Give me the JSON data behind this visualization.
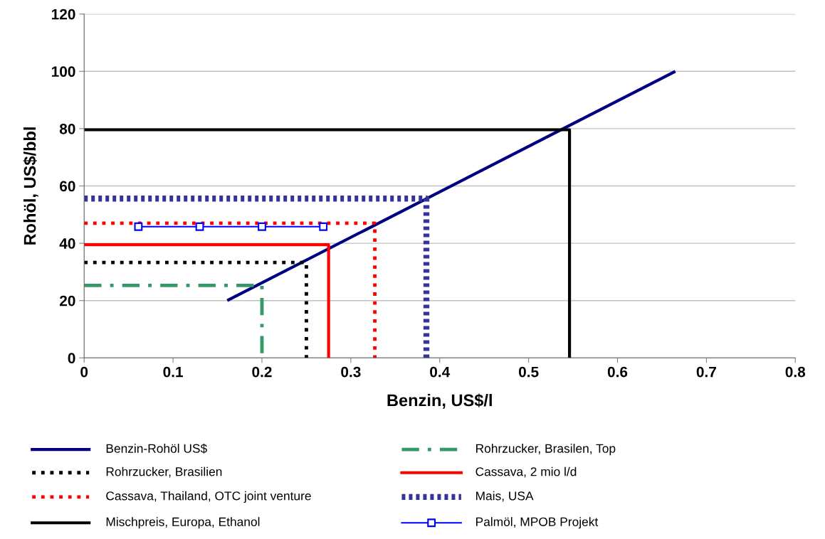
{
  "chart_data": {
    "type": "line",
    "xlabel": "Benzin, US$/l",
    "ylabel": "Rohöl, US$/bbl",
    "xlim": [
      0,
      0.8
    ],
    "xticks": [
      {
        "value": 0,
        "label": "0"
      },
      0.1,
      0.2,
      0.3,
      0.4,
      0.5,
      0.6,
      0.7,
      0.8
    ],
    "ylim": [
      0,
      120
    ],
    "yticks": [
      0,
      20,
      40,
      60,
      80,
      100,
      120
    ],
    "grid": "y",
    "legend": "bottom",
    "marker": "none",
    "series": [
      {
        "name": "Benzin-Rohöl US$",
        "color": "#000080",
        "line_style": "solid",
        "x": [
          0.161,
          0.665
        ],
        "values": [
          20,
          100
        ]
      },
      {
        "name": "Rohrzucker, Brasilien",
        "color": "#000000",
        "line_style": "dotted",
        "x": [
          0,
          0.25,
          0.25
        ],
        "values": [
          33.3,
          33.3,
          0
        ]
      },
      {
        "name": "Cassava, Thailand, OTC joint venture",
        "color": "#ff0000",
        "line_style": "dotted",
        "x": [
          0,
          0.327,
          0.327
        ],
        "values": [
          47,
          47,
          0
        ]
      },
      {
        "name": "Mischpreis, Europa, Ethanol",
        "color": "#000000",
        "line_style": "solid",
        "x": [
          0,
          0.546,
          0.546
        ],
        "values": [
          79.6,
          79.6,
          0
        ]
      },
      {
        "name": "Rohrzucker, Brasilen, Top",
        "color": "#339966",
        "line_style": "dashdot",
        "x": [
          0,
          0.2,
          0.2
        ],
        "values": [
          25.3,
          25.3,
          0
        ]
      },
      {
        "name": "Cassava, 2 mio l/d",
        "color": "#ff0000",
        "line_style": "solid",
        "x": [
          0,
          0.275,
          0.275
        ],
        "values": [
          39.5,
          39.5,
          0
        ]
      },
      {
        "name": "Mais, USA",
        "color": "#333399",
        "line_style": "dense",
        "x": [
          0,
          0.385,
          0.385
        ],
        "values": [
          55.6,
          55.6,
          0
        ]
      },
      {
        "name": "Palmöl, MPOB Projekt",
        "color": "#0000ff",
        "line_style": "solid",
        "marker": "square",
        "x": [
          0.061,
          0.13,
          0.2,
          0.269
        ],
        "values": [
          45.8,
          45.8,
          45.8,
          45.8
        ]
      }
    ]
  }
}
